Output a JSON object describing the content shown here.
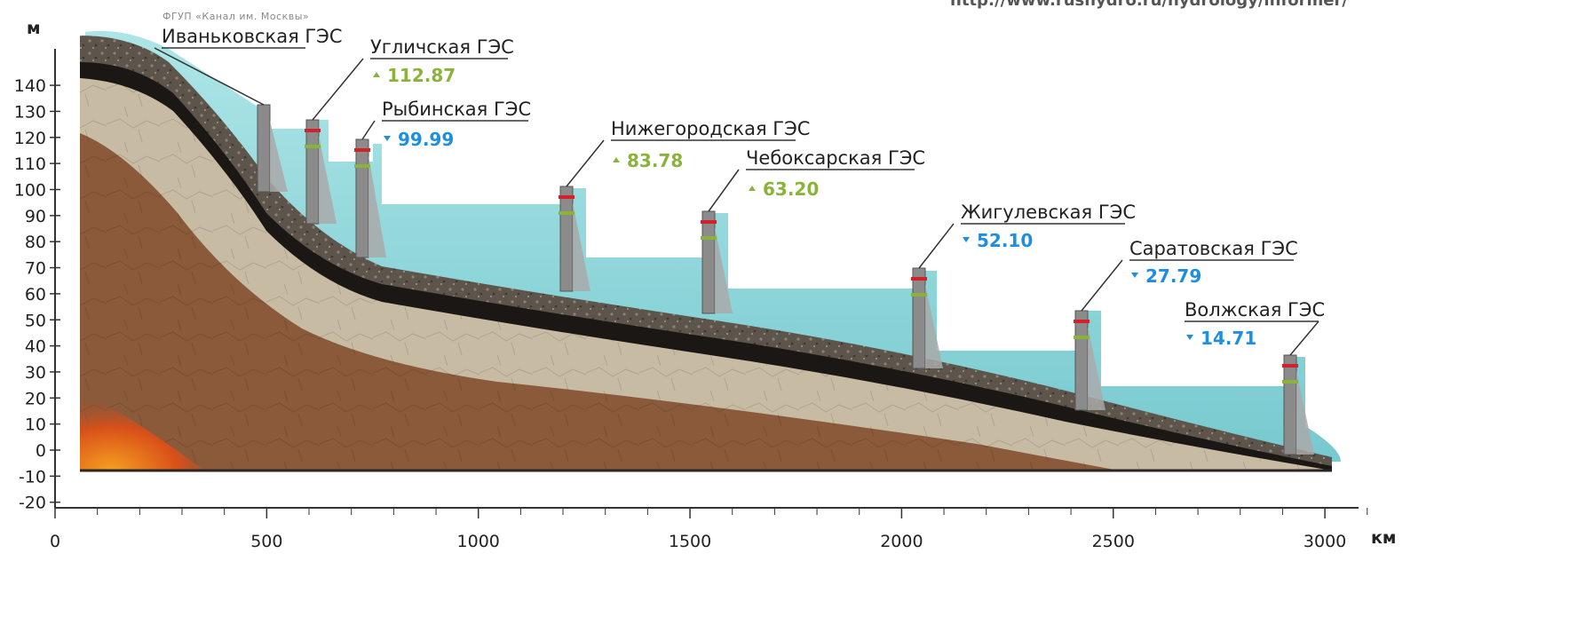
{
  "credit": "ФГУП «Канал им. Москвы»",
  "url_fragment": "http://www.rushydro.ru/hydrology/informer/",
  "axes": {
    "y_unit": "м",
    "x_unit": "км",
    "y_ticks": [
      140,
      130,
      120,
      110,
      100,
      90,
      80,
      70,
      60,
      50,
      40,
      30,
      20,
      10,
      0,
      -10,
      -20
    ],
    "x_ticks": [
      0,
      500,
      1000,
      1500,
      2000,
      2500,
      3000
    ]
  },
  "colors": {
    "rise": "#8ab33b",
    "fall": "#1e8fe0",
    "water": "#7fd4d8"
  },
  "dams": [
    {
      "name": "Иваньковская ГЭС",
      "level": "",
      "trend": ""
    },
    {
      "name": "Угличская ГЭС",
      "level": "112.87",
      "trend": "up"
    },
    {
      "name": "Рыбинская ГЭС",
      "level": "99.99",
      "trend": "down"
    },
    {
      "name": "Нижегородская ГЭС",
      "level": "83.78",
      "trend": "up"
    },
    {
      "name": "Чебоксарская ГЭС",
      "level": "63.20",
      "trend": "up"
    },
    {
      "name": "Жигулевская ГЭС",
      "level": "52.10",
      "trend": "down"
    },
    {
      "name": "Саратовская ГЭС",
      "level": "27.79",
      "trend": "down"
    },
    {
      "name": "Волжская ГЭС",
      "level": "14.71",
      "trend": "down"
    }
  ]
}
